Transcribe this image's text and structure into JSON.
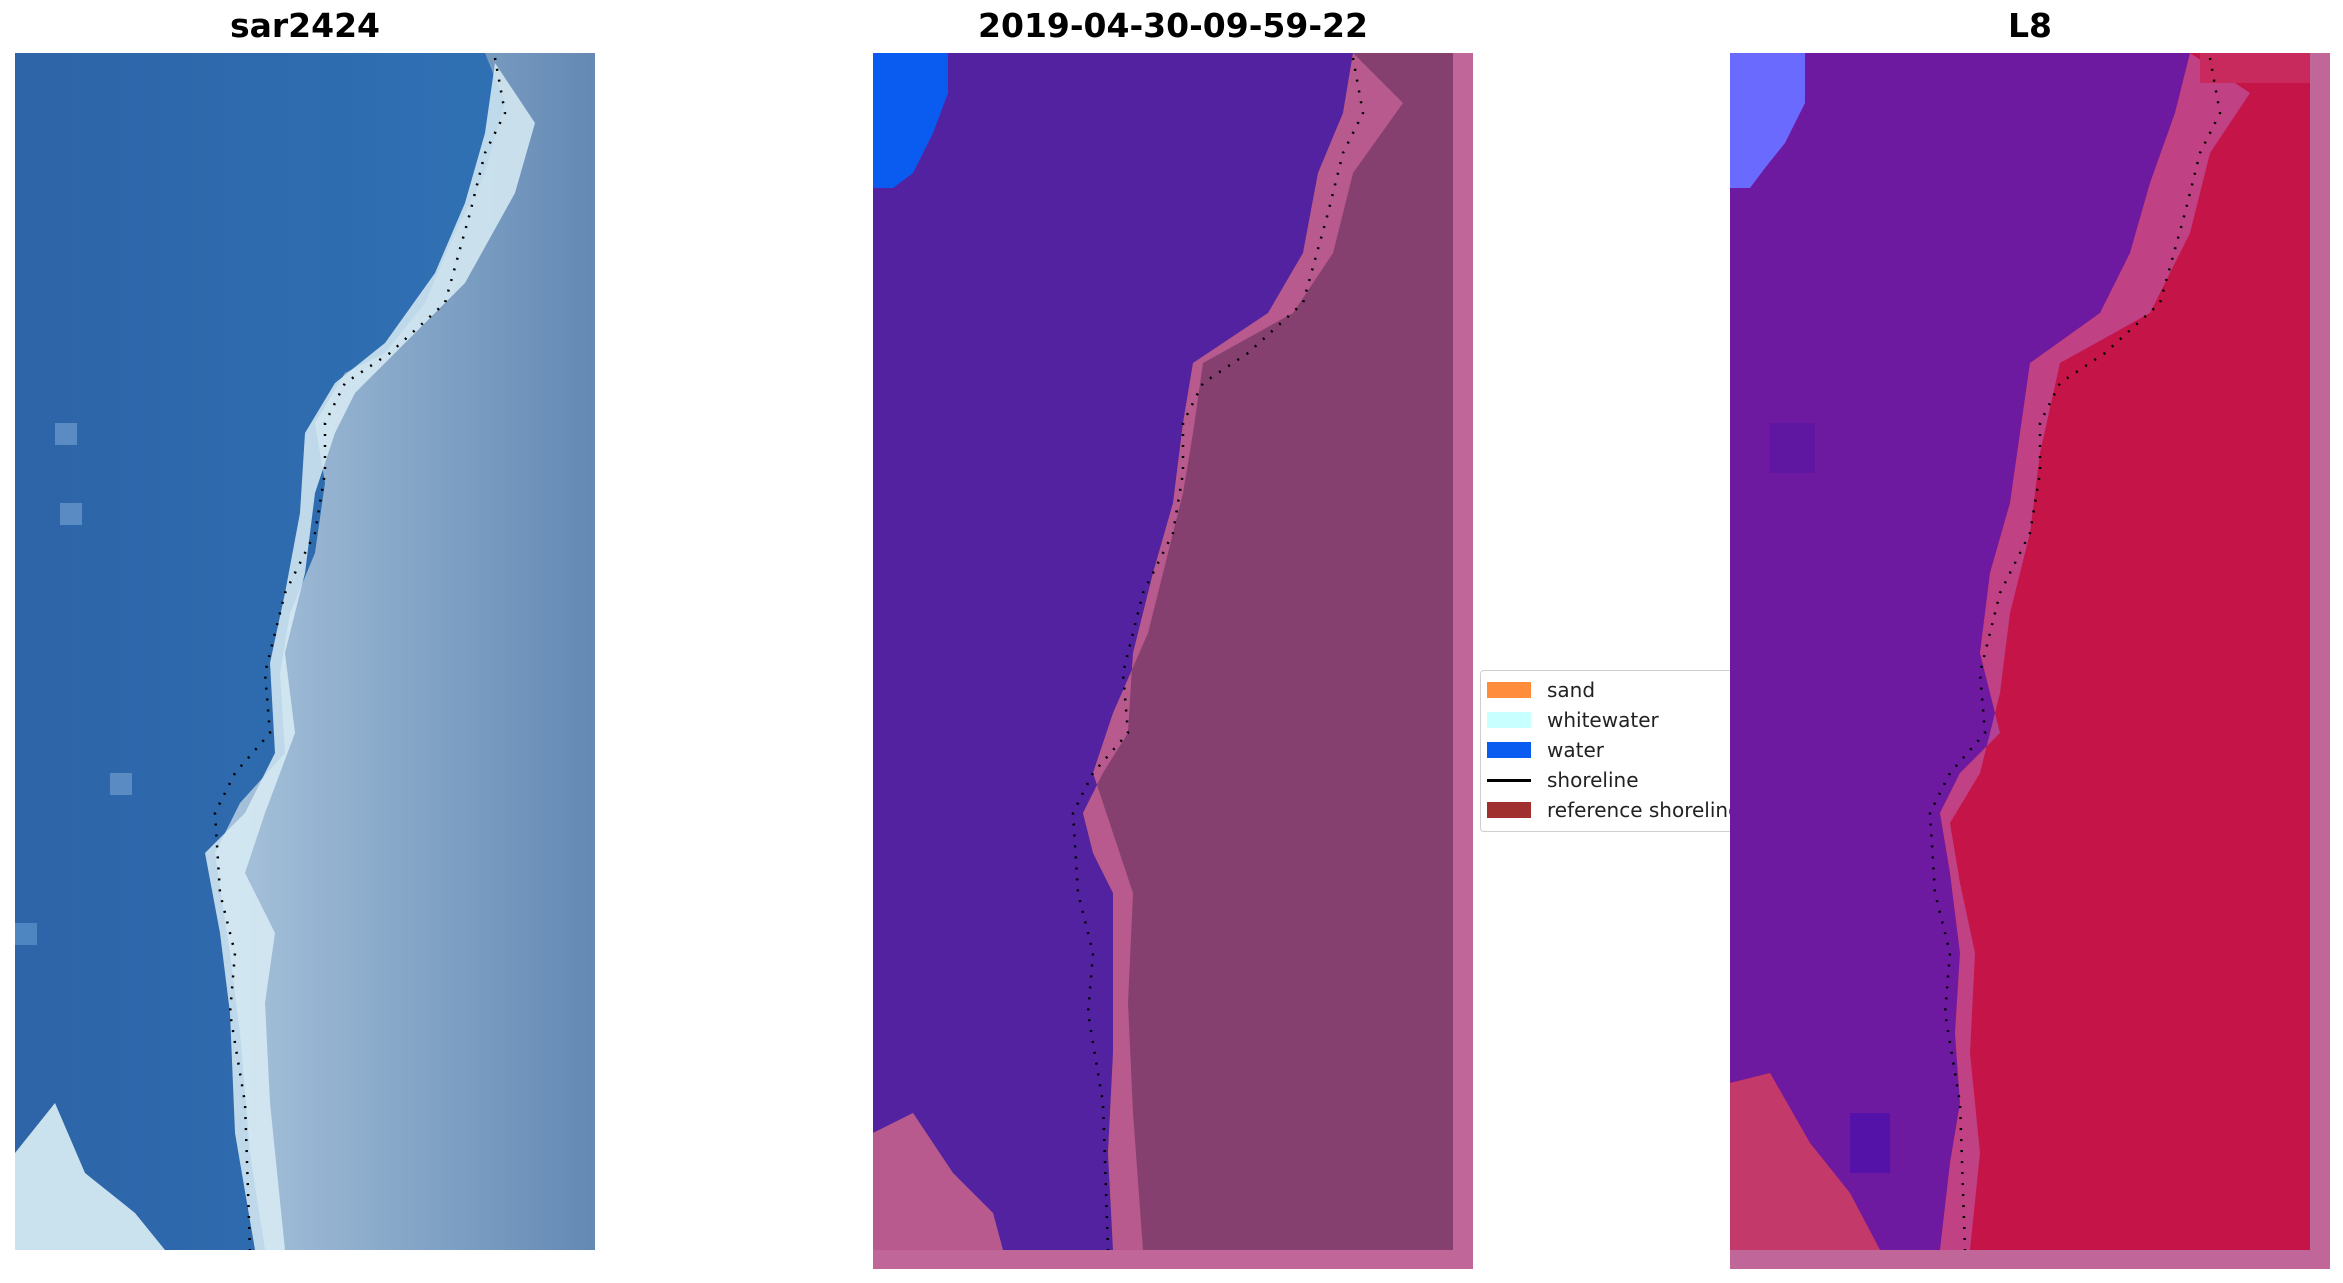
{
  "panels": [
    {
      "title": "sar2424"
    },
    {
      "title": "2019-04-30-09-59-22"
    },
    {
      "title": "L8"
    }
  ],
  "legend": {
    "items": [
      {
        "label": "sand",
        "kind": "patch",
        "color": "#ff8c3b"
      },
      {
        "label": "whitewater",
        "kind": "patch",
        "color": "#c8ffff"
      },
      {
        "label": "water",
        "kind": "patch",
        "color": "#0a5cf0"
      },
      {
        "label": "shoreline",
        "kind": "line",
        "color": "#000000"
      },
      {
        "label": "reference shoreline",
        "kind": "patch",
        "color": "#a03030"
      }
    ]
  },
  "colors": {
    "sea_rgb": "#2f6aad",
    "surf_rgb": "#d9ecf4",
    "land_rgb": "#6f93b8",
    "sea_class": "#5222a0",
    "land_class": "#86406f",
    "land_class_light": "#c06090",
    "water_class": "#0a5cf0",
    "sea_mndwi": "#6d1aa0",
    "land_mndwi": "#c41448",
    "water_mndwi": "#6a6aff",
    "frame_pink": "#c06699"
  }
}
